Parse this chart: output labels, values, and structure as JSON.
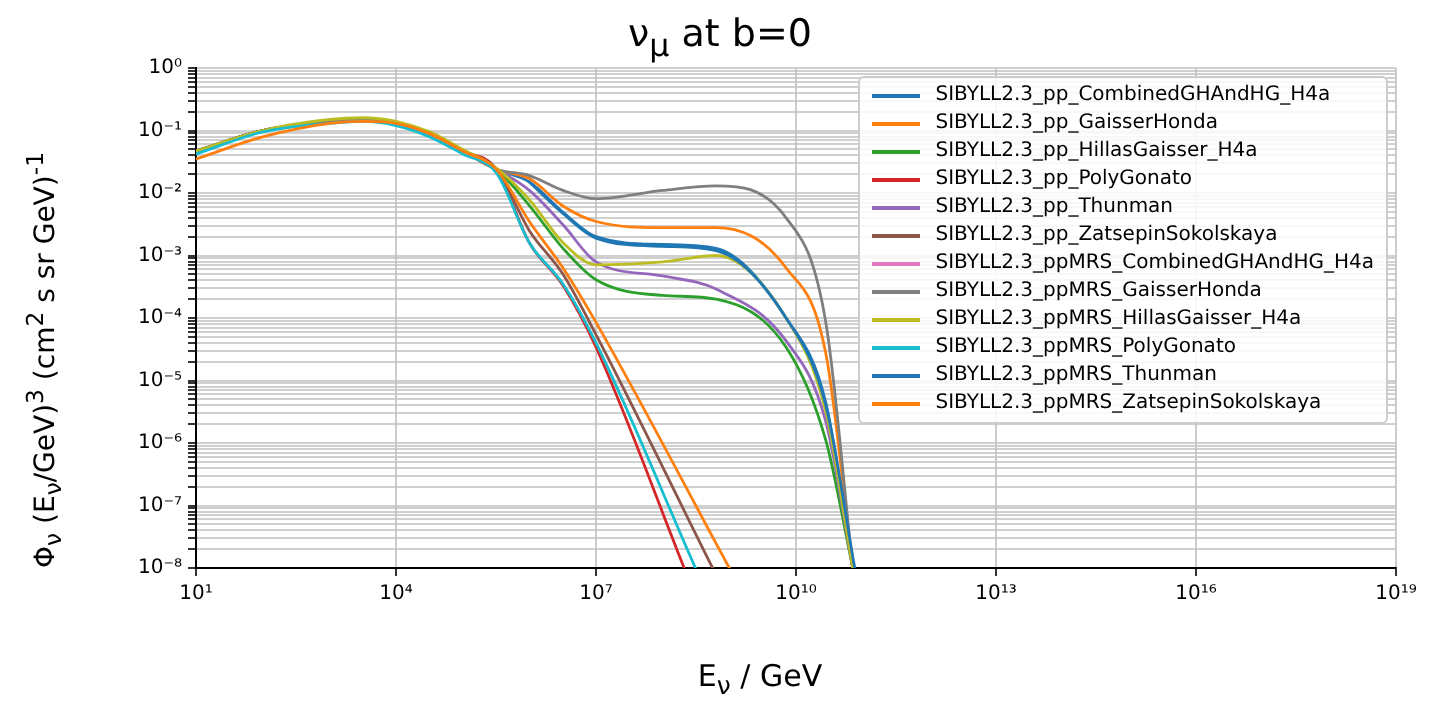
{
  "chart_data": {
    "type": "line",
    "title": "ν$_{μ}$ at b=0",
    "xlabel": "E$_{ν}$ / GeV",
    "ylabel": "Φ$_{ν}$ (E$_{ν}$/GeV)$^{3}$ (cm$^{2}$ s sr GeV)$^{-1}$",
    "log": "xy",
    "grid": true,
    "legend": "top right",
    "xlim": [
      10,
      1e+19
    ],
    "xticks": [
      {
        "value": 10,
        "label": "10¹"
      },
      {
        "value": 10000.0,
        "label": "10⁴"
      },
      {
        "value": 10000000.0,
        "label": "10⁷"
      },
      {
        "value": 10000000000.0,
        "label": "10¹⁰"
      },
      {
        "value": 10000000000000.0,
        "label": "10¹³"
      },
      {
        "value": 1e+16,
        "label": "10¹⁶"
      },
      {
        "value": 1e+19,
        "label": "10¹⁹"
      }
    ],
    "ylim": [
      1e-08,
      1
    ],
    "yticks": [
      {
        "value": 1e-08,
        "label": "10⁻⁸"
      },
      {
        "value": 1e-07,
        "label": "10⁻⁷"
      },
      {
        "value": 1e-06,
        "label": "10⁻⁶"
      },
      {
        "value": 1e-05,
        "label": "10⁻⁵"
      },
      {
        "value": 0.0001,
        "label": "10⁻⁴"
      },
      {
        "value": 0.001,
        "label": "10⁻³"
      },
      {
        "value": 0.01,
        "label": "10⁻²"
      },
      {
        "value": 0.1,
        "label": "10⁻¹"
      },
      {
        "value": 1,
        "label": "10⁰"
      }
    ],
    "series": [
      {
        "name": "SIBYLL2.3_pp_CombinedGHAndHG_H4a",
        "color": "#1f77b4",
        "x": [
          10,
          100,
          1000,
          3200,
          10000,
          32000,
          100000,
          320000,
          1000000.0,
          3200000.0,
          10000000.0,
          100000000.0,
          630000000.0,
          7100000000.0,
          28000000000.0,
          71000000000.0
        ],
        "values": [
          0.047,
          0.1,
          0.14,
          0.15,
          0.13,
          0.089,
          0.047,
          0.024,
          0.015,
          0.0049,
          0.002,
          0.0015,
          0.0013,
          0.0001,
          4.4e-06,
          1e-08
        ]
      },
      {
        "name": "SIBYLL2.3_pp_GaisserHonda",
        "color": "#ff7f0e",
        "x": [
          10,
          100,
          1000,
          3200,
          10000,
          32000,
          100000,
          320000,
          1000000.0,
          3200000.0,
          10000000.0,
          100000000.0,
          630000000.0,
          7100000000.0,
          28000000000.0,
          71000000000.0
        ],
        "values": [
          0.047,
          0.1,
          0.14,
          0.15,
          0.13,
          0.089,
          0.047,
          0.024,
          0.017,
          0.0062,
          0.0035,
          0.0028,
          0.0028,
          0.00063,
          2.7e-05,
          1e-08
        ]
      },
      {
        "name": "SIBYLL2.3_pp_HillasGaisser_H4a",
        "color": "#2ca02c",
        "x": [
          10,
          100,
          1000,
          3200,
          10000,
          32000,
          100000,
          320000,
          1000000.0,
          3200000.0,
          10000000.0,
          100000000.0,
          630000000.0,
          7100000000.0,
          28000000000.0,
          71000000000.0
        ],
        "values": [
          0.047,
          0.1,
          0.14,
          0.15,
          0.13,
          0.089,
          0.047,
          0.024,
          0.0063,
          0.0013,
          0.00041,
          0.00023,
          0.0002,
          3.4e-05,
          1.1e-06,
          1e-08
        ]
      },
      {
        "name": "SIBYLL2.3_pp_PolyGonato",
        "color": "#d62728",
        "x": [
          10,
          100,
          1000,
          3200,
          10000,
          32000,
          100000,
          320000,
          1000000.0,
          3200000.0,
          10000000.0,
          210000000.0
        ],
        "values": [
          0.045,
          0.1,
          0.14,
          0.15,
          0.13,
          0.089,
          0.047,
          0.024,
          0.0016,
          0.00033,
          3.4e-05,
          1e-08
        ]
      },
      {
        "name": "SIBYLL2.3_pp_Thunman",
        "color": "#9467bd",
        "x": [
          10,
          100,
          1000,
          3200,
          10000,
          32000,
          100000,
          320000,
          1000000.0,
          3200000.0,
          10000000.0,
          100000000.0,
          630000000.0,
          7100000000.0,
          28000000000.0,
          71000000000.0
        ],
        "values": [
          0.047,
          0.1,
          0.14,
          0.15,
          0.13,
          0.089,
          0.047,
          0.024,
          0.011,
          0.0031,
          0.00079,
          0.00047,
          0.00029,
          4.3e-05,
          2.2e-06,
          1e-08
        ]
      },
      {
        "name": "SIBYLL2.3_pp_ZatsepinSokolskaya",
        "color": "#8c564b",
        "x": [
          10,
          100,
          1000,
          3200,
          10000,
          32000,
          100000,
          320000,
          1000000.0,
          3200000.0,
          10000000.0,
          560000000.0
        ],
        "values": [
          0.047,
          0.1,
          0.14,
          0.15,
          0.13,
          0.089,
          0.047,
          0.024,
          0.0025,
          0.0005,
          5.4e-05,
          1e-08
        ]
      },
      {
        "name": "SIBYLL2.3_ppMRS_CombinedGHAndHG_H4a",
        "color": "#e377c2"
      },
      {
        "name": "SIBYLL2.3_ppMRS_GaisserHonda",
        "color": "#7f7f7f",
        "x": [
          10,
          100,
          1000,
          3200,
          10000,
          32000,
          100000,
          320000,
          1000000.0,
          3200000.0,
          10000000.0,
          100000000.0,
          630000000.0,
          7100000000.0,
          28000000000.0,
          71000000000.0
        ],
        "values": [
          0.047,
          0.1,
          0.14,
          0.15,
          0.13,
          0.089,
          0.047,
          0.024,
          0.019,
          0.011,
          0.0081,
          0.011,
          0.013,
          0.004,
          8.5e-05,
          1e-08
        ]
      },
      {
        "name": "SIBYLL2.3_ppMRS_HillasGaisser_H4a",
        "color": "#bcbd22",
        "x": [
          10,
          100,
          1000,
          3200,
          10000,
          32000,
          100000,
          320000,
          1000000.0,
          3200000.0,
          10000000.0,
          100000000.0,
          630000000.0,
          7100000000.0,
          28000000000.0,
          71000000000.0
        ],
        "values": [
          0.047,
          0.1,
          0.15,
          0.16,
          0.14,
          0.095,
          0.05,
          0.025,
          0.0078,
          0.0016,
          0.00071,
          0.00079,
          0.001,
          0.0001,
          3.2e-06,
          1e-08
        ]
      },
      {
        "name": "SIBYLL2.3_ppMRS_PolyGonato",
        "color": "#17becf",
        "x": [
          10,
          100,
          1000,
          3200,
          10000,
          32000,
          100000,
          320000,
          1000000.0,
          3200000.0,
          10000000.0,
          310000000.0
        ],
        "values": [
          0.042,
          0.095,
          0.13,
          0.14,
          0.12,
          0.079,
          0.042,
          0.021,
          0.0016,
          0.00035,
          4e-05,
          1e-08
        ]
      },
      {
        "name": "SIBYLL2.3_ppMRS_Thunman",
        "color": "#1f77b4",
        "x": [
          1000000.0,
          3200000.0,
          10000000.0,
          100000000.0,
          630000000.0,
          7100000000.0,
          28000000000.0,
          76000000000.0
        ],
        "values": [
          0.015,
          0.0047,
          0.0019,
          0.0014,
          0.0012,
          0.0001,
          4e-06,
          1e-08
        ]
      },
      {
        "name": "SIBYLL2.3_ppMRS_ZatsepinSokolskaya",
        "color": "#ff7f0e",
        "x": [
          10,
          100,
          1000,
          3200,
          10000,
          32000,
          100000,
          320000,
          1000000.0,
          3200000.0,
          10000000.0,
          1000000000.0
        ],
        "values": [
          0.035,
          0.079,
          0.13,
          0.14,
          0.13,
          0.089,
          0.047,
          0.024,
          0.0035,
          0.00063,
          8.5e-05,
          1e-08
        ]
      }
    ]
  }
}
